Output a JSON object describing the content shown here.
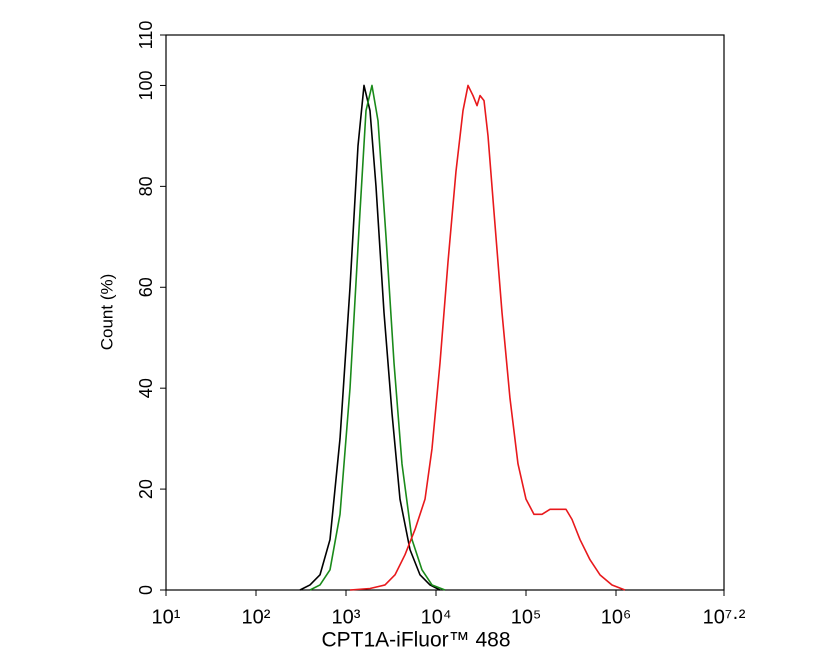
{
  "chart_data": {
    "type": "line",
    "xlabel": "CPT1A-iFluor™ 488",
    "ylabel": "Count  (%)",
    "xscale": "log",
    "xlim": [
      10,
      15848931.9
    ],
    "ylim": [
      0,
      110
    ],
    "xticks": [
      {
        "value": 10,
        "label": "10¹"
      },
      {
        "value": 100,
        "label": "10²"
      },
      {
        "value": 1000,
        "label": "10³"
      },
      {
        "value": 10000,
        "label": "10⁴"
      },
      {
        "value": 100000,
        "label": "10⁵"
      },
      {
        "value": 1000000,
        "label": "10⁶"
      },
      {
        "value": 15848931.9,
        "label": "10⁷·²"
      }
    ],
    "yticks": [
      0,
      20,
      40,
      60,
      80,
      100,
      110
    ],
    "series": [
      {
        "color": "#000000",
        "x": [
          308,
          398,
          514,
          664,
          858,
          1108,
          1359,
          1585,
          1848,
          2154,
          2644,
          3246,
          3981,
          5142,
          6642,
          8577,
          11080
        ],
        "values": [
          0,
          1,
          3,
          10,
          30,
          60,
          88,
          100,
          95,
          80,
          55,
          35,
          18,
          8,
          3,
          1,
          0
        ]
      },
      {
        "color": "#1a8a1a",
        "x": [
          398,
          514,
          664,
          858,
          1108,
          1431,
          1668,
          1944,
          2268,
          2783,
          3415,
          4188,
          5412,
          6986,
          9028,
          12590
        ],
        "values": [
          0,
          1,
          4,
          15,
          40,
          75,
          95,
          100,
          93,
          70,
          45,
          25,
          10,
          4,
          1,
          0
        ]
      },
      {
        "color": "#e8191c",
        "x": [
          1108,
          1848,
          2712,
          3503,
          4527,
          5848,
          7551,
          9028,
          11080,
          13590,
          16680,
          19950,
          22680,
          25770,
          28570,
          30830,
          34150,
          37840,
          44060,
          54120,
          66370,
          81470,
          100000,
          122700,
          150600,
          184800,
          227000,
          278000,
          324300,
          398100,
          514000,
          663800,
          903000,
          1259000
        ],
        "values": [
          0,
          0.3,
          1,
          3,
          7,
          12,
          18,
          28,
          45,
          65,
          83,
          95,
          100,
          98,
          96,
          98,
          97,
          90,
          75,
          55,
          38,
          25,
          18,
          15,
          15,
          16,
          16,
          16,
          14,
          10,
          6,
          3,
          1,
          0
        ]
      }
    ]
  }
}
